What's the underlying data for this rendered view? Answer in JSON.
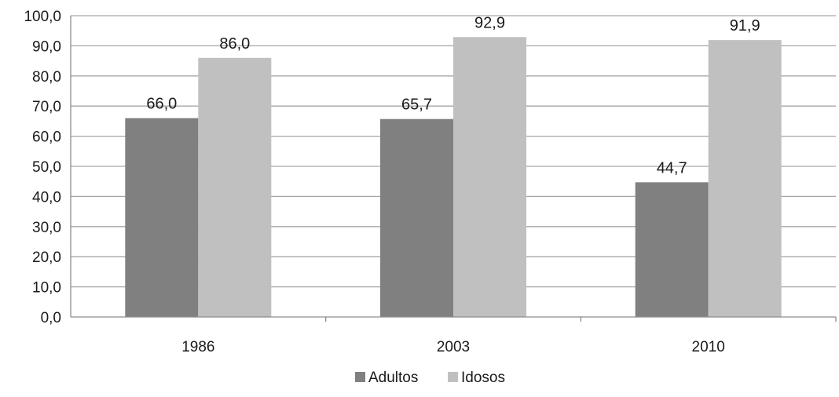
{
  "chart_data": {
    "type": "bar",
    "categories": [
      "1986",
      "2003",
      "2010"
    ],
    "series": [
      {
        "name": "Adultos",
        "values": [
          66.0,
          65.7,
          44.7
        ],
        "color": "#808080"
      },
      {
        "name": "Idosos",
        "values": [
          86.0,
          92.9,
          91.9
        ],
        "color": "#c0c0c0"
      }
    ],
    "data_labels": [
      [
        "66,0",
        "65,7",
        "44,7"
      ],
      [
        "86,0",
        "92,9",
        "91,9"
      ]
    ],
    "y_ticks": [
      "0,0",
      "10,0",
      "20,0",
      "30,0",
      "40,0",
      "50,0",
      "60,0",
      "70,0",
      "80,0",
      "90,0",
      "100,0"
    ],
    "ylim": [
      0,
      100
    ],
    "y_step": 10,
    "grid": true,
    "legend_position": "bottom",
    "title": "",
    "xlabel": "",
    "ylabel": ""
  }
}
